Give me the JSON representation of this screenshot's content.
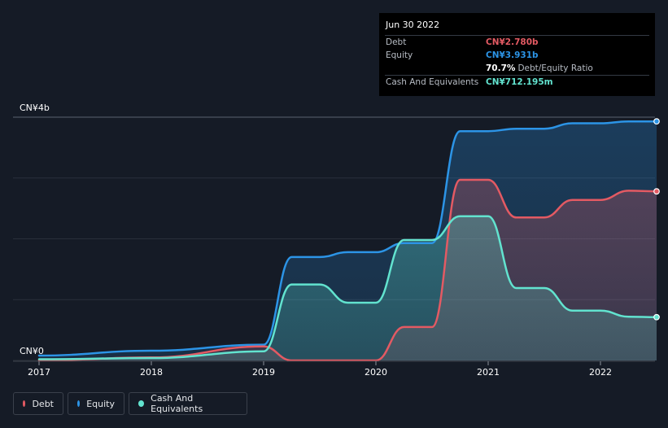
{
  "tooltip": {
    "date": "Jun 30 2022",
    "debt_label": "Debt",
    "debt_value": "CN¥2.780b",
    "equity_label": "Equity",
    "equity_value": "CN¥3.931b",
    "ratio_value": "70.7%",
    "ratio_label": "Debt/Equity Ratio",
    "cash_label": "Cash And Equivalents",
    "cash_value": "CN¥712.195m"
  },
  "legend": {
    "debt": "Debt",
    "equity": "Equity",
    "cash": "Cash And Equivalents"
  },
  "colors": {
    "debt": "#e35a63",
    "equity": "#2c94e6",
    "cash": "#62e3cf",
    "background": "#151b26",
    "tooltip_bg": "#000000"
  },
  "chart_data": {
    "type": "area",
    "y_unit": "CN¥ billions",
    "ylim": [
      0,
      4
    ],
    "xlim": [
      2016.75,
      2022.5
    ],
    "y_tick_labels": [
      {
        "value": 4,
        "label": "CN¥4b"
      },
      {
        "value": 0,
        "label": "CN¥0"
      }
    ],
    "gridlines": [
      0,
      1,
      2,
      3,
      4
    ],
    "x_ticks": [
      2017,
      2018,
      2019,
      2020,
      2021,
      2022
    ],
    "x_tick_labels": [
      "2017",
      "2018",
      "2019",
      "2020",
      "2021",
      "2022"
    ],
    "series": [
      {
        "name": "Equity",
        "key": "equity",
        "points": [
          [
            2017.0,
            0.08
          ],
          [
            2018.0,
            0.16
          ],
          [
            2019.0,
            0.26
          ],
          [
            2019.25,
            1.7
          ],
          [
            2019.5,
            1.7
          ],
          [
            2019.75,
            1.78
          ],
          [
            2020.0,
            1.78
          ],
          [
            2020.25,
            1.93
          ],
          [
            2020.5,
            1.93
          ],
          [
            2020.75,
            3.77
          ],
          [
            2021.0,
            3.77
          ],
          [
            2021.25,
            3.81
          ],
          [
            2021.5,
            3.81
          ],
          [
            2021.75,
            3.9
          ],
          [
            2022.0,
            3.9
          ],
          [
            2022.25,
            3.93
          ],
          [
            2022.5,
            3.931
          ]
        ]
      },
      {
        "name": "Debt",
        "key": "debt",
        "points": [
          [
            2017.0,
            0.0
          ],
          [
            2018.0,
            0.05
          ],
          [
            2019.0,
            0.23
          ],
          [
            2019.25,
            0.0
          ],
          [
            2019.5,
            0.0
          ],
          [
            2019.75,
            0.0
          ],
          [
            2020.0,
            0.0
          ],
          [
            2020.25,
            0.55
          ],
          [
            2020.5,
            0.55
          ],
          [
            2020.75,
            2.97
          ],
          [
            2021.0,
            2.97
          ],
          [
            2021.25,
            2.35
          ],
          [
            2021.5,
            2.35
          ],
          [
            2021.75,
            2.64
          ],
          [
            2022.0,
            2.64
          ],
          [
            2022.25,
            2.79
          ],
          [
            2022.5,
            2.78
          ]
        ]
      },
      {
        "name": "Cash And Equivalents",
        "key": "cash",
        "points": [
          [
            2017.0,
            0.02
          ],
          [
            2018.0,
            0.04
          ],
          [
            2019.0,
            0.15
          ],
          [
            2019.25,
            1.25
          ],
          [
            2019.5,
            1.25
          ],
          [
            2019.75,
            0.95
          ],
          [
            2020.0,
            0.95
          ],
          [
            2020.25,
            1.98
          ],
          [
            2020.5,
            1.98
          ],
          [
            2020.75,
            2.37
          ],
          [
            2021.0,
            2.37
          ],
          [
            2021.25,
            1.19
          ],
          [
            2021.5,
            1.19
          ],
          [
            2021.75,
            0.82
          ],
          [
            2022.0,
            0.82
          ],
          [
            2022.25,
            0.72
          ],
          [
            2022.5,
            0.712
          ]
        ]
      }
    ]
  }
}
